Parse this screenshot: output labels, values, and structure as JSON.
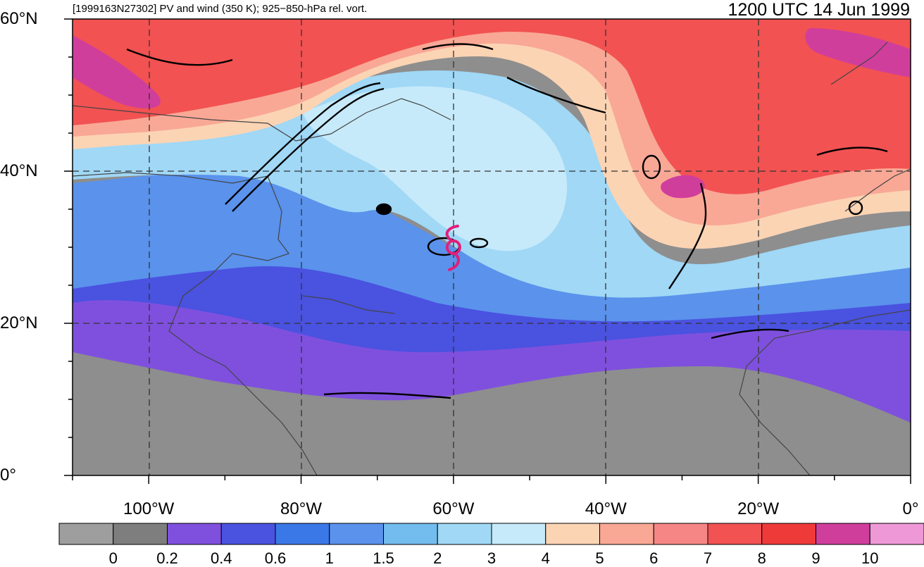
{
  "header": {
    "left_title": "[1999163N27302] PV and wind (350 K); 925−850-hPa rel. vort.",
    "right_title": "1200 UTC 14 Jun 1999"
  },
  "map": {
    "lat_labels": [
      {
        "text": "60°N",
        "lat": 60
      },
      {
        "text": "40°N",
        "lat": 40
      },
      {
        "text": "20°N",
        "lat": 20
      },
      {
        "text": "0°",
        "lat": 0
      }
    ],
    "lon_labels": [
      {
        "text": "100°W",
        "lon": -100
      },
      {
        "text": "80°W",
        "lon": -80
      },
      {
        "text": "60°W",
        "lon": -60
      },
      {
        "text": "40°W",
        "lon": -40
      },
      {
        "text": "20°W",
        "lon": -20
      },
      {
        "text": "0°",
        "lon": 0
      }
    ],
    "lon_range": [
      -110,
      0
    ],
    "lat_range": [
      0,
      60
    ],
    "storm_symbol": {
      "lon": -60,
      "lat": 30,
      "color": "#e0207a"
    }
  },
  "colorbar": {
    "colors": [
      "#9e9e9e",
      "#7e7e7e",
      "#7f50de",
      "#4a52e0",
      "#3a78e8",
      "#5a92ec",
      "#72bcee",
      "#a0d8f6",
      "#c6eafa",
      "#fbd4b4",
      "#f9a896",
      "#f68686",
      "#f25252",
      "#ef3a3a",
      "#d03e9c",
      "#ef98d8"
    ],
    "labels": [
      "0",
      "0.2",
      "0.4",
      "0.6",
      "1",
      "1.5",
      "2",
      "3",
      "4",
      "5",
      "6",
      "7",
      "8",
      "9",
      "10"
    ]
  }
}
